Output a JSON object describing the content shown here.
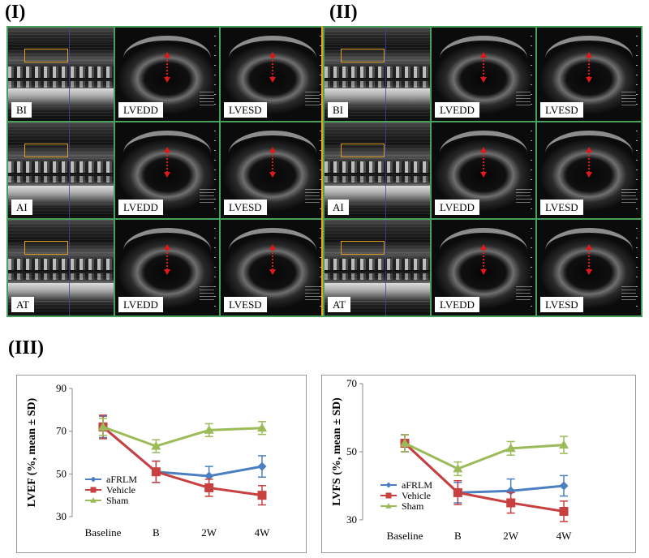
{
  "panels": {
    "I": "(I)",
    "II": "(II)",
    "III": "(III)"
  },
  "echo_grid": {
    "rows": [
      {
        "mmode": "BI",
        "b1": "LVEDD",
        "b2": "LVESD"
      },
      {
        "mmode": "AI",
        "b1": "LVEDD",
        "b2": "LVESD"
      },
      {
        "mmode": "AT",
        "b1": "LVEDD",
        "b2": "LVESD"
      }
    ]
  },
  "colors": {
    "aFRLM": "#4a7fc1",
    "Vehicle": "#c94040",
    "Sham": "#9bbb59",
    "grid_border": "#49a05c",
    "divider": "#f4a21c"
  },
  "chart_data": [
    {
      "type": "line",
      "ylabel": "LVEF (%, mean ± SD)",
      "categories": [
        "Baseline",
        "B",
        "2W",
        "4W"
      ],
      "ylim": [
        30,
        90
      ],
      "yticks": [
        30,
        50,
        70,
        90
      ],
      "legend": "bottom-left",
      "grid": false,
      "series": [
        {
          "name": "aFRLM",
          "marker": "diamond",
          "values": [
            72,
            51,
            49,
            53.5
          ],
          "err": [
            5,
            5,
            4.5,
            5
          ]
        },
        {
          "name": "Vehicle",
          "marker": "square",
          "values": [
            72,
            51,
            43.5,
            40
          ],
          "err": [
            5.5,
            5,
            4,
            4.5
          ]
        },
        {
          "name": "Sham",
          "marker": "triangle",
          "values": [
            72,
            63,
            70.5,
            71.5
          ],
          "err": [
            4,
            3,
            3,
            3
          ]
        }
      ]
    },
    {
      "type": "line",
      "ylabel": "LVFS (%, mean ± SD)",
      "categories": [
        "Baseline",
        "B",
        "2W",
        "4W"
      ],
      "ylim": [
        30,
        70
      ],
      "yticks": [
        30,
        50,
        70
      ],
      "legend": "bottom-left",
      "grid": false,
      "series": [
        {
          "name": "aFRLM",
          "marker": "diamond",
          "values": [
            52.5,
            38,
            38.5,
            40
          ],
          "err": [
            2.5,
            3,
            3.5,
            3
          ]
        },
        {
          "name": "Vehicle",
          "marker": "square",
          "values": [
            52.5,
            38,
            35,
            32.5
          ],
          "err": [
            2.5,
            3.5,
            3,
            3
          ]
        },
        {
          "name": "Sham",
          "marker": "triangle",
          "values": [
            52.5,
            45,
            51,
            52
          ],
          "err": [
            2.5,
            2,
            2,
            2.5
          ]
        }
      ]
    }
  ]
}
